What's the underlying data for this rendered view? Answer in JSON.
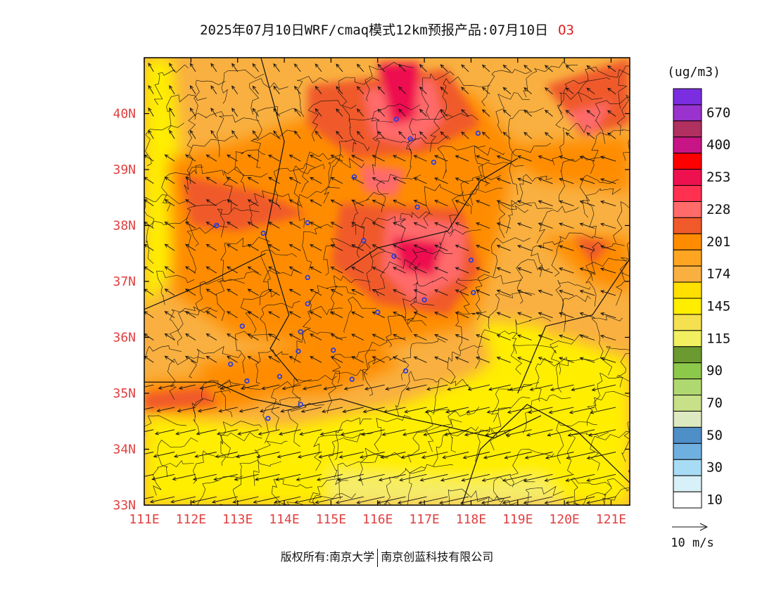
{
  "title": {
    "main": "2025年07月10日WRF/cmaq模式12km预报产品:07月10日",
    "species": "O3"
  },
  "axes": {
    "lon_labels": [
      "111E",
      "112E",
      "113E",
      "114E",
      "115E",
      "116E",
      "117E",
      "118E",
      "119E",
      "120E",
      "121E"
    ],
    "lat_labels": [
      "40N",
      "39N",
      "38N",
      "37N",
      "36N",
      "35N",
      "34N",
      "33N"
    ],
    "lon_range": [
      111,
      121.4
    ],
    "lat_range": [
      33,
      41
    ],
    "label_color": "#e04040"
  },
  "colorbar": {
    "unit": "(ug/m3)",
    "bands": [
      {
        "color": "#7b2ee0",
        "label": ""
      },
      {
        "color": "#9a32cd",
        "label": "670"
      },
      {
        "color": "#b03060",
        "label": ""
      },
      {
        "color": "#c71585",
        "label": "400"
      },
      {
        "color": "#ff0000",
        "label": ""
      },
      {
        "color": "#ee1150",
        "label": "253"
      },
      {
        "color": "#ff3050",
        "label": ""
      },
      {
        "color": "#ff6a6a",
        "label": "228"
      },
      {
        "color": "#f05a2a",
        "label": ""
      },
      {
        "color": "#ff8c00",
        "label": "201"
      },
      {
        "color": "#ffa522",
        "label": ""
      },
      {
        "color": "#f9b040",
        "label": "174"
      },
      {
        "color": "#ffe000",
        "label": ""
      },
      {
        "color": "#ffee00",
        "label": "145"
      },
      {
        "color": "#f5e050",
        "label": ""
      },
      {
        "color": "#f0f060",
        "label": "115"
      },
      {
        "color": "#6a9a30",
        "label": ""
      },
      {
        "color": "#8cc84a",
        "label": "90"
      },
      {
        "color": "#b0d870",
        "label": ""
      },
      {
        "color": "#c8e088",
        "label": "70"
      },
      {
        "color": "#dde9c0",
        "label": ""
      },
      {
        "color": "#4f8fc8",
        "label": "50"
      },
      {
        "color": "#70b0e0",
        "label": ""
      },
      {
        "color": "#a8dcf5",
        "label": "30"
      },
      {
        "color": "#d8f0f8",
        "label": ""
      },
      {
        "color": "#ffffff",
        "label": "10"
      }
    ]
  },
  "wind_reference": {
    "label": "10 m/s"
  },
  "footer": {
    "left": "版权所有:南京大学",
    "right": "南京创蓝科技有限公司"
  },
  "map_colors": {
    "yellow": "#ffee00",
    "light_yellow": "#f5ec6a",
    "light_orange": "#f9b040",
    "orange": "#ff8c00",
    "dark_orange": "#f05a2a",
    "salmon": "#ff6a6a",
    "red": "#ee1150",
    "station": "#2b3de0"
  },
  "stations": [
    {
      "lon": 116.4,
      "lat": 39.9
    },
    {
      "lon": 116.7,
      "lat": 39.55
    },
    {
      "lon": 117.2,
      "lat": 39.13
    },
    {
      "lon": 118.15,
      "lat": 39.65
    },
    {
      "lon": 115.5,
      "lat": 38.87
    },
    {
      "lon": 116.85,
      "lat": 38.33
    },
    {
      "lon": 112.55,
      "lat": 38.0
    },
    {
      "lon": 113.55,
      "lat": 37.86
    },
    {
      "lon": 114.5,
      "lat": 38.05
    },
    {
      "lon": 115.7,
      "lat": 37.73
    },
    {
      "lon": 116.35,
      "lat": 37.45
    },
    {
      "lon": 118.0,
      "lat": 37.38
    },
    {
      "lon": 114.5,
      "lat": 37.07
    },
    {
      "lon": 114.5,
      "lat": 36.6
    },
    {
      "lon": 116.0,
      "lat": 36.45
    },
    {
      "lon": 117.0,
      "lat": 36.67
    },
    {
      "lon": 118.05,
      "lat": 36.8
    },
    {
      "lon": 113.1,
      "lat": 36.2
    },
    {
      "lon": 114.35,
      "lat": 36.1
    },
    {
      "lon": 114.3,
      "lat": 35.75
    },
    {
      "lon": 115.05,
      "lat": 35.77
    },
    {
      "lon": 112.85,
      "lat": 35.52
    },
    {
      "lon": 113.9,
      "lat": 35.3
    },
    {
      "lon": 113.2,
      "lat": 35.22
    },
    {
      "lon": 115.45,
      "lat": 35.25
    },
    {
      "lon": 116.6,
      "lat": 35.4
    },
    {
      "lon": 114.35,
      "lat": 34.8
    },
    {
      "lon": 113.65,
      "lat": 34.55
    }
  ]
}
